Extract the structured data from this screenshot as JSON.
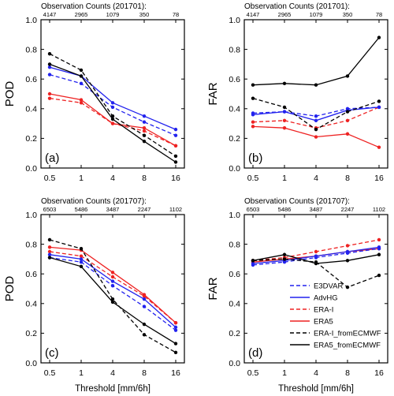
{
  "colors": {
    "E3DVAR": "#2222ee",
    "AdvHG": "#2222ee",
    "ERA-I": "#ee2222",
    "ERA5": "#ee2222",
    "ERA-I_fromECMWF": "#000000",
    "ERA5_fromECMWF": "#000000"
  },
  "chart_data": [
    {
      "panel": "(a)",
      "type": "line",
      "ylabel": "POD",
      "xlabel": "",
      "top_title": "Observation Counts (201701):",
      "counts": [
        "4147",
        "2965",
        "1079",
        "350",
        "78"
      ],
      "categories": [
        "0.5",
        "1",
        "4",
        "8",
        "16"
      ],
      "ylim": [
        0.0,
        1.0
      ],
      "yticks": [
        "0.0",
        "0.2",
        "0.4",
        "0.6",
        "0.8",
        "1.0"
      ],
      "series": [
        {
          "name": "E3DVAR",
          "dashed": true,
          "values": [
            0.63,
            0.57,
            0.41,
            0.31,
            0.22
          ]
        },
        {
          "name": "AdvHG",
          "dashed": false,
          "values": [
            0.68,
            0.62,
            0.44,
            0.35,
            0.26
          ]
        },
        {
          "name": "ERA-I",
          "dashed": true,
          "values": [
            0.47,
            0.44,
            0.3,
            0.25,
            0.15
          ]
        },
        {
          "name": "ERA5",
          "dashed": false,
          "values": [
            0.5,
            0.46,
            0.3,
            0.27,
            0.15
          ]
        },
        {
          "name": "ERA-I_fromECMWF",
          "dashed": true,
          "values": [
            0.77,
            0.66,
            0.35,
            0.22,
            0.08
          ]
        },
        {
          "name": "ERA5_fromECMWF",
          "dashed": false,
          "values": [
            0.7,
            0.62,
            0.33,
            0.18,
            0.04
          ]
        }
      ]
    },
    {
      "panel": "(b)",
      "type": "line",
      "ylabel": "FAR",
      "xlabel": "",
      "top_title": "Observation Counts (201701):",
      "counts": [
        "4147",
        "2965",
        "1079",
        "350",
        "78"
      ],
      "categories": [
        "0.5",
        "1",
        "4",
        "8",
        "16"
      ],
      "ylim": [
        0.0,
        1.0
      ],
      "yticks": [
        "0.0",
        "0.2",
        "0.4",
        "0.6",
        "0.8",
        "1.0"
      ],
      "series": [
        {
          "name": "E3DVAR",
          "dashed": true,
          "values": [
            0.37,
            0.38,
            0.35,
            0.4,
            0.41
          ]
        },
        {
          "name": "AdvHG",
          "dashed": false,
          "values": [
            0.36,
            0.38,
            0.32,
            0.39,
            0.41
          ]
        },
        {
          "name": "ERA-I",
          "dashed": true,
          "values": [
            0.31,
            0.32,
            0.27,
            0.32,
            0.41
          ]
        },
        {
          "name": "ERA5",
          "dashed": false,
          "values": [
            0.28,
            0.27,
            0.21,
            0.23,
            0.14
          ]
        },
        {
          "name": "ERA-I_fromECMWF",
          "dashed": true,
          "values": [
            0.47,
            0.41,
            0.26,
            0.38,
            0.45
          ]
        },
        {
          "name": "ERA5_fromECMWF",
          "dashed": false,
          "values": [
            0.56,
            0.57,
            0.56,
            0.62,
            0.88
          ]
        }
      ]
    },
    {
      "panel": "(c)",
      "type": "line",
      "ylabel": "POD",
      "xlabel": "Threshold [mm/6h]",
      "top_title": "Observation Counts (201707):",
      "counts": [
        "6503",
        "5486",
        "3487",
        "2247",
        "1102"
      ],
      "categories": [
        "0.5",
        "1",
        "4",
        "8",
        "16"
      ],
      "ylim": [
        0.0,
        1.0
      ],
      "yticks": [
        "0.0",
        "0.2",
        "0.4",
        "0.6",
        "0.8",
        "1.0"
      ],
      "series": [
        {
          "name": "E3DVAR",
          "dashed": true,
          "values": [
            0.71,
            0.68,
            0.52,
            0.38,
            0.22
          ]
        },
        {
          "name": "AdvHG",
          "dashed": false,
          "values": [
            0.73,
            0.7,
            0.55,
            0.43,
            0.24
          ]
        },
        {
          "name": "ERA-I",
          "dashed": true,
          "values": [
            0.75,
            0.72,
            0.58,
            0.45,
            0.27
          ]
        },
        {
          "name": "ERA5",
          "dashed": false,
          "values": [
            0.78,
            0.76,
            0.61,
            0.46,
            0.27
          ]
        },
        {
          "name": "ERA-I_fromECMWF",
          "dashed": true,
          "values": [
            0.83,
            0.77,
            0.43,
            0.19,
            0.07
          ]
        },
        {
          "name": "ERA5_fromECMWF",
          "dashed": false,
          "values": [
            0.71,
            0.65,
            0.41,
            0.26,
            0.13
          ]
        }
      ]
    },
    {
      "panel": "(d)",
      "type": "line",
      "ylabel": "FAR",
      "xlabel": "Threshold [mm/6h]",
      "top_title": "Observation Counts (201707):",
      "counts": [
        "6503",
        "5486",
        "3487",
        "2247",
        "1102"
      ],
      "categories": [
        "0.5",
        "1",
        "4",
        "8",
        "16"
      ],
      "ylim": [
        0.0,
        1.0
      ],
      "yticks": [
        "0.0",
        "0.2",
        "0.4",
        "0.6",
        "0.8",
        "1.0"
      ],
      "legend": [
        "E3DVAR",
        "AdvHG",
        "ERA-I",
        "ERA5",
        "ERA-I_fromECMWF",
        "ERA5_fromECMWF"
      ],
      "series": [
        {
          "name": "E3DVAR",
          "dashed": true,
          "values": [
            0.66,
            0.68,
            0.71,
            0.74,
            0.77
          ]
        },
        {
          "name": "AdvHG",
          "dashed": false,
          "values": [
            0.67,
            0.69,
            0.72,
            0.75,
            0.78
          ]
        },
        {
          "name": "ERA-I",
          "dashed": true,
          "values": [
            0.69,
            0.71,
            0.75,
            0.79,
            0.83
          ]
        },
        {
          "name": "ERA5",
          "dashed": false,
          "values": [
            0.68,
            0.7,
            0.72,
            0.75,
            0.77
          ]
        },
        {
          "name": "ERA-I_fromECMWF",
          "dashed": true,
          "values": [
            0.69,
            0.7,
            0.68,
            0.51,
            0.59
          ]
        },
        {
          "name": "ERA5_fromECMWF",
          "dashed": false,
          "values": [
            0.69,
            0.73,
            0.67,
            0.69,
            0.73
          ]
        }
      ]
    }
  ]
}
